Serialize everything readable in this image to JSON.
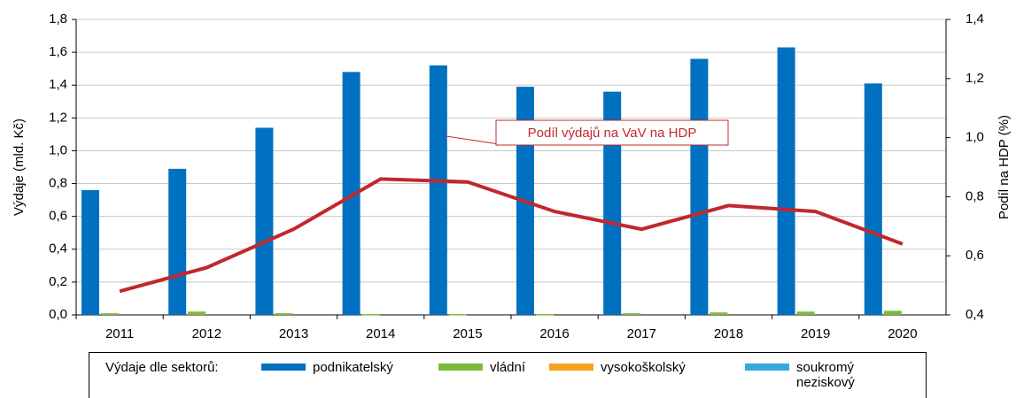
{
  "chart_data": {
    "type": "bar",
    "categories": [
      "2011",
      "2012",
      "2013",
      "2014",
      "2015",
      "2016",
      "2017",
      "2018",
      "2019",
      "2020"
    ],
    "series": [
      {
        "name": "podnikatelský",
        "color": "#0070c0",
        "values": [
          0.76,
          0.89,
          1.14,
          1.48,
          1.52,
          1.39,
          1.36,
          1.56,
          1.63,
          1.41
        ]
      },
      {
        "name": "vládní",
        "color": "#7dba3c",
        "values": [
          0.01,
          0.02,
          0.01,
          0.005,
          0.005,
          0.005,
          0.01,
          0.015,
          0.02,
          0.025
        ]
      },
      {
        "name": "vysokoškolský",
        "color": "#f7a21b",
        "values": [
          0,
          0,
          0,
          0,
          0,
          0,
          0,
          0,
          0,
          0
        ]
      },
      {
        "name": "soukromý neziskový",
        "color": "#35a8e0",
        "values": [
          0,
          0,
          0,
          0,
          0,
          0,
          0,
          0,
          0,
          0
        ]
      },
      {
        "name": "Podíl výdajů na VaV na HDP",
        "color": "#c0282d",
        "type": "line",
        "axis": "y2",
        "values": [
          0.48,
          0.56,
          0.69,
          0.86,
          0.85,
          0.75,
          0.69,
          0.77,
          0.75,
          0.64
        ]
      }
    ],
    "ylabel": "Výdaje (mld. Kč)",
    "y2label": "Podíl na HDP (%)",
    "legend_title": "Výdaje dle sektorů:",
    "ylim": [
      0,
      1.8
    ],
    "yticks": [
      {
        "value": 0,
        "label": "0,0"
      },
      {
        "value": 0.2,
        "label": "0,2"
      },
      {
        "value": 0.4,
        "label": "0,4"
      },
      {
        "value": 0.6,
        "label": "0,6"
      },
      {
        "value": 0.8,
        "label": "0,8"
      },
      {
        "value": 1.0,
        "label": "1,0"
      },
      {
        "value": 1.2,
        "label": "1,2"
      },
      {
        "value": 1.4,
        "label": "1,4"
      },
      {
        "value": 1.6,
        "label": "1,6"
      },
      {
        "value": 1.8,
        "label": "1,8"
      }
    ],
    "y2lim": [
      0.4,
      1.4
    ],
    "y2ticks": [
      {
        "value": 0.4,
        "label": "0,4"
      },
      {
        "value": 0.6,
        "label": "0,6"
      },
      {
        "value": 0.8,
        "label": "0,8"
      },
      {
        "value": 1.0,
        "label": "1,0"
      },
      {
        "value": 1.2,
        "label": "1,2"
      },
      {
        "value": 1.4,
        "label": "1,4"
      }
    ],
    "grid": true
  }
}
